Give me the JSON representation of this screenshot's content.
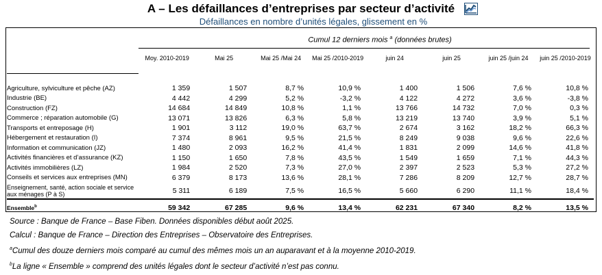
{
  "title": "A – Les défaillances d’entreprises par secteur d’activité",
  "subtitle": "Défaillances en nombre d’unités légales, glissement en %",
  "cumul": {
    "text": "Cumul 12 derniers mois",
    "sup": "a",
    "tail": "(données brutes)"
  },
  "columns": [
    "Moy. 2010-2019",
    "Mai 25",
    "Mai 25 /Mai 24",
    "Mai 25 /2010-2019",
    "juin 24",
    "juin 25",
    "juin 25 /juin 24",
    "juin 25 /2010-2019"
  ],
  "rows": [
    {
      "label": "Agriculture, sylviculture et pêche (AZ)",
      "values": [
        "1 359",
        "1 507",
        "8,7 %",
        "10,9 %",
        "1 400",
        "1 506",
        "7,6 %",
        "10,8 %"
      ]
    },
    {
      "label": "Industrie (BE)",
      "values": [
        "4 442",
        "4 299",
        "5,2 %",
        "-3,2 %",
        "4 122",
        "4 272",
        "3,6 %",
        "-3,8 %"
      ]
    },
    {
      "label": "Construction (FZ)",
      "values": [
        "14 684",
        "14 849",
        "10,8 %",
        "1,1 %",
        "13 766",
        "14 732",
        "7,0 %",
        "0,3 %"
      ]
    },
    {
      "label": "Commerce ; réparation automobile (G)",
      "values": [
        "13 071",
        "13 826",
        "6,3 %",
        "5,8 %",
        "13 219",
        "13 740",
        "3,9 %",
        "5,1 %"
      ]
    },
    {
      "label": "Transports et entreposage (H)",
      "values": [
        "1 901",
        "3 112",
        "19,0 %",
        "63,7 %",
        "2 674",
        "3 162",
        "18,2 %",
        "66,3 %"
      ]
    },
    {
      "label": "Hébergement et restauration (I)",
      "values": [
        "7 374",
        "8 961",
        "9,5 %",
        "21,5 %",
        "8 249",
        "9 038",
        "9,6 %",
        "22,6 %"
      ]
    },
    {
      "label": "Information et communication (JZ)",
      "values": [
        "1 480",
        "2 093",
        "16,2 %",
        "41,4 %",
        "1 831",
        "2 099",
        "14,6 %",
        "41,8 %"
      ]
    },
    {
      "label": "Activités financières et d’assurance (KZ)",
      "values": [
        "1 150",
        "1 650",
        "7,8 %",
        "43,5 %",
        "1 549",
        "1 659",
        "7,1 %",
        "44,3 %"
      ]
    },
    {
      "label": "Activités immobilières (LZ)",
      "values": [
        "1 984",
        "2 520",
        "7,3 %",
        "27,0 %",
        "2 397",
        "2 523",
        "5,3 %",
        "27,2 %"
      ]
    },
    {
      "label": "Conseils et services aux entreprises (MN)",
      "values": [
        "6 379",
        "8 173",
        "13,6 %",
        "28,1 %",
        "7 286",
        "8 209",
        "12,7 %",
        "28,7 %"
      ]
    },
    {
      "label": "Enseignement, santé, action sociale et service aux ménages (P à S)",
      "values": [
        "5 311",
        "6 189",
        "7,5 %",
        "16,5 %",
        "5 660",
        "6 290",
        "11,1 %",
        "18,4 %"
      ]
    }
  ],
  "total": {
    "label": "Ensemble",
    "sup": "b",
    "values": [
      "59 342",
      "67 285",
      "9,6 %",
      "13,4 %",
      "62 231",
      "67 340",
      "8,2 %",
      "13,5 %"
    ]
  },
  "notes": {
    "source": "Source : Banque de France – Base Fiben. Données disponibles début août 2025.",
    "calcul": "Calcul : Banque de France – Direction des Entreprises – Observatoire des Entreprises.",
    "note_a_sup": "a",
    "note_a": "Cumul des douze derniers mois comparé au cumul des mêmes mois un an auparavant et à la moyenne 2010-2019.",
    "note_b_sup": "b",
    "note_b": "La ligne « Ensemble » comprend des unités légales dont le secteur d’activité n’est pas connu."
  },
  "icon": "line-chart-icon",
  "colors": {
    "subtitle": "#1f4e79",
    "icon": "#1f4e79"
  }
}
